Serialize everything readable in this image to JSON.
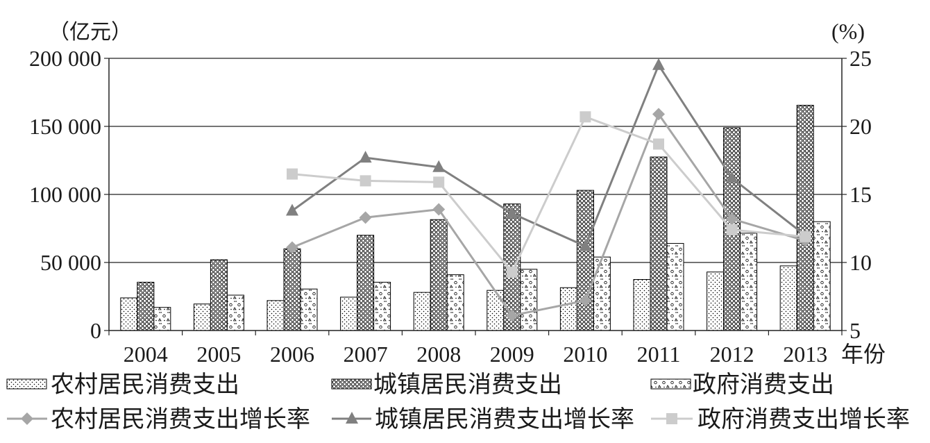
{
  "chart_data": {
    "type": "bar",
    "xlabel": "年份",
    "ylabel_left": "（亿元）",
    "ylabel_right": "(%)",
    "categories": [
      "2004",
      "2005",
      "2006",
      "2007",
      "2008",
      "2009",
      "2010",
      "2011",
      "2012",
      "2013"
    ],
    "y_left": {
      "range": [
        0,
        200000
      ],
      "ticks": [
        0,
        50000,
        100000,
        150000,
        200000
      ],
      "tick_labels": [
        "0",
        "50 000",
        "100 000",
        "150 000",
        "200 000"
      ]
    },
    "y_right": {
      "range": [
        5,
        25
      ],
      "ticks": [
        5,
        10,
        15,
        20,
        25
      ],
      "tick_labels": [
        "5",
        "10",
        "15",
        "20",
        "25"
      ]
    },
    "grid": true,
    "legend_position": "bottom",
    "series": [
      {
        "name": "农村居民消费支出",
        "type": "bar",
        "axis": "left",
        "pattern": "fine-dots",
        "values": [
          24000,
          19500,
          22000,
          24500,
          28000,
          29500,
          31500,
          37500,
          43000,
          47500
        ]
      },
      {
        "name": "城镇居民消费支出",
        "type": "bar",
        "axis": "left",
        "pattern": "small-circles",
        "values": [
          35500,
          52000,
          60000,
          70000,
          81500,
          93000,
          103000,
          127500,
          149000,
          165500
        ]
      },
      {
        "name": "政府消费支出",
        "type": "bar",
        "axis": "left",
        "pattern": "sparse-shapes",
        "values": [
          17000,
          26000,
          30500,
          35500,
          41000,
          45000,
          54000,
          64000,
          71500,
          80000
        ]
      },
      {
        "name": "农村居民消费支出增长率",
        "type": "line",
        "axis": "right",
        "marker": "diamond",
        "color": "#a6a6a6",
        "values": [
          null,
          null,
          11.1,
          13.3,
          13.9,
          6.1,
          7.2,
          20.9,
          13.2,
          11.6
        ]
      },
      {
        "name": "城镇居民消费支出增长率",
        "type": "line",
        "axis": "right",
        "marker": "triangle",
        "color": "#808080",
        "values": [
          null,
          null,
          13.8,
          17.7,
          17.0,
          13.6,
          11.2,
          24.5,
          16.2,
          12.0
        ]
      },
      {
        "name": "政府消费支出增长率",
        "type": "line",
        "axis": "right",
        "marker": "square",
        "color": "#cccccc",
        "values": [
          null,
          null,
          16.5,
          16.0,
          15.9,
          9.3,
          20.7,
          18.7,
          12.4,
          11.9
        ]
      }
    ]
  }
}
